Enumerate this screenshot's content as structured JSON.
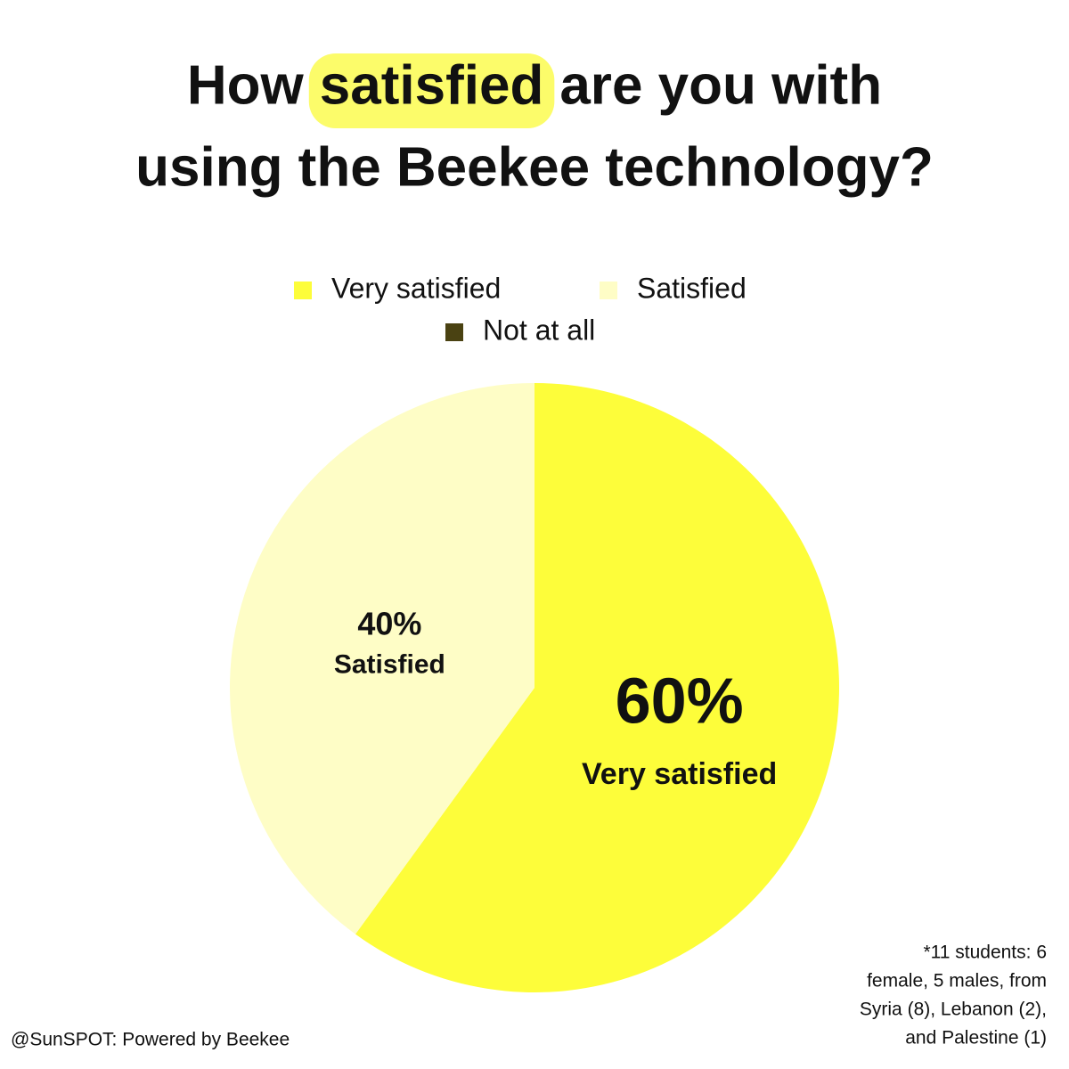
{
  "chart_data": {
    "type": "pie",
    "title": [
      "How",
      "satisfied",
      "are you with",
      "using the Beekee technology?"
    ],
    "categories": [
      "Very satisfied",
      "Satisfied",
      "Not at all"
    ],
    "values": [
      60,
      40,
      0
    ],
    "value_labels": [
      "60%",
      "40%",
      null
    ],
    "colors": [
      "#fdfd3a",
      "#fefdc6",
      "#4a4212"
    ],
    "highlight_color": "#fcfc6a",
    "note": [
      "*11 students: 6",
      "female, 5 males, from",
      "Syria (8), Lebanon (2),",
      "and Palestine (1)"
    ],
    "footer": "@SunSPOT: Powered by Beekee"
  }
}
